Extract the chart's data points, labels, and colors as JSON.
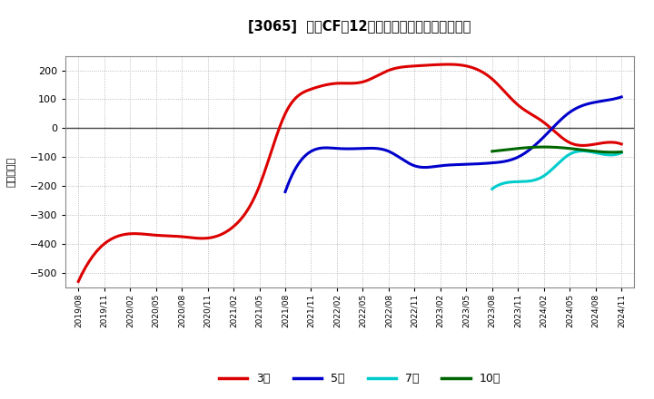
{
  "title": "[3065]  投賄CFだ12か月移動合計の平均値の推移",
  "ylabel": "（百万円）",
  "background_color": "#ffffff",
  "plot_bg_color": "#ffffff",
  "grid_color": "#aaaaaa",
  "ylim": [
    -550,
    250
  ],
  "yticks": [
    -500,
    -400,
    -300,
    -200,
    -100,
    0,
    100,
    200
  ],
  "series": {
    "3year": {
      "color": "#dd0000",
      "label": "3年",
      "points": [
        [
          "2019/08",
          -530
        ],
        [
          "2019/11",
          -400
        ],
        [
          "2020/02",
          -365
        ],
        [
          "2020/05",
          -370
        ],
        [
          "2020/08",
          -375
        ],
        [
          "2020/11",
          -380
        ],
        [
          "2021/02",
          -340
        ],
        [
          "2021/05",
          -200
        ],
        [
          "2021/08",
          50
        ],
        [
          "2021/11",
          135
        ],
        [
          "2022/02",
          155
        ],
        [
          "2022/05",
          160
        ],
        [
          "2022/08",
          200
        ],
        [
          "2022/11",
          215
        ],
        [
          "2023/02",
          220
        ],
        [
          "2023/05",
          215
        ],
        [
          "2023/08",
          170
        ],
        [
          "2023/11",
          80
        ],
        [
          "2024/02",
          20
        ],
        [
          "2024/05",
          -50
        ],
        [
          "2024/08",
          -55
        ],
        [
          "2024/11",
          -55
        ]
      ]
    },
    "5year": {
      "color": "#0000cc",
      "label": "5年",
      "points": [
        [
          "2021/08",
          -220
        ],
        [
          "2021/11",
          -80
        ],
        [
          "2022/02",
          -70
        ],
        [
          "2022/05",
          -70
        ],
        [
          "2022/08",
          -80
        ],
        [
          "2022/11",
          -130
        ],
        [
          "2023/02",
          -130
        ],
        [
          "2023/05",
          -125
        ],
        [
          "2023/08",
          -120
        ],
        [
          "2023/11",
          -100
        ],
        [
          "2024/02",
          -30
        ],
        [
          "2024/05",
          55
        ],
        [
          "2024/08",
          90
        ],
        [
          "2024/11",
          108
        ]
      ]
    },
    "7year": {
      "color": "#00cccc",
      "label": "7年",
      "points": [
        [
          "2023/08",
          -210
        ],
        [
          "2023/11",
          -185
        ],
        [
          "2024/02",
          -165
        ],
        [
          "2024/05",
          -90
        ],
        [
          "2024/08",
          -85
        ],
        [
          "2024/11",
          -85
        ]
      ]
    },
    "10year": {
      "color": "#006600",
      "label": "10年",
      "points": [
        [
          "2023/08",
          -80
        ],
        [
          "2023/11",
          -70
        ],
        [
          "2024/02",
          -65
        ],
        [
          "2024/05",
          -70
        ],
        [
          "2024/08",
          -80
        ],
        [
          "2024/11",
          -82
        ]
      ]
    }
  },
  "xtick_labels": [
    "2019/08",
    "2019/11",
    "2020/02",
    "2020/05",
    "2020/08",
    "2020/11",
    "2021/02",
    "2021/05",
    "2021/08",
    "2021/11",
    "2022/02",
    "2022/05",
    "2022/08",
    "2022/11",
    "2023/02",
    "2023/05",
    "2023/08",
    "2023/11",
    "2024/02",
    "2024/05",
    "2024/08",
    "2024/11"
  ]
}
